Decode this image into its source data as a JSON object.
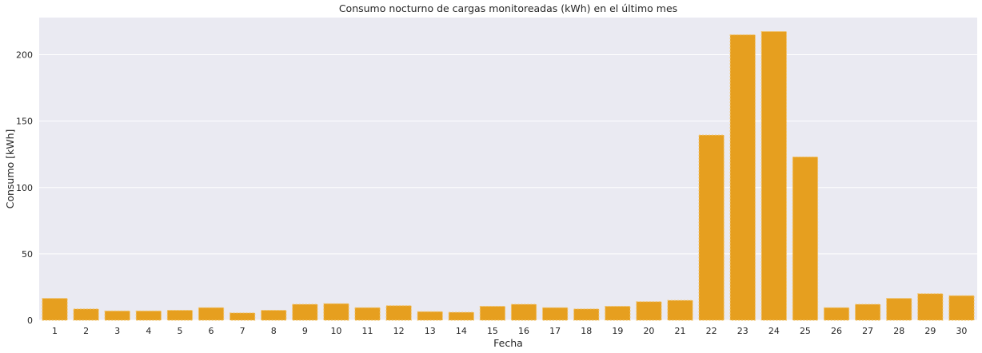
{
  "chart_data": {
    "type": "bar",
    "title": "Consumo nocturno de cargas monitoreadas (kWh) en el último mes",
    "xlabel": "Fecha",
    "ylabel": "Consumo [kWh]",
    "categories": [
      "1",
      "2",
      "3",
      "4",
      "5",
      "6",
      "7",
      "8",
      "9",
      "10",
      "11",
      "12",
      "13",
      "14",
      "15",
      "16",
      "17",
      "18",
      "19",
      "20",
      "21",
      "22",
      "23",
      "24",
      "25",
      "26",
      "27",
      "28",
      "29",
      "30"
    ],
    "values": [
      16.5,
      8.5,
      7,
      7,
      7.5,
      9.5,
      5.5,
      7.5,
      12,
      12.5,
      9.5,
      11,
      6.5,
      6,
      10.5,
      12,
      9.5,
      8.5,
      10.5,
      14,
      15,
      139.5,
      215,
      217.5,
      123,
      9.5,
      12,
      16.5,
      20,
      18.5
    ],
    "ylim": [
      0,
      228
    ],
    "yticks": [
      0,
      50,
      100,
      150,
      200
    ],
    "grid": true,
    "colors": {
      "bar": "#e69f1f",
      "background": "#eaeaf2",
      "grid": "#ffffff"
    }
  }
}
